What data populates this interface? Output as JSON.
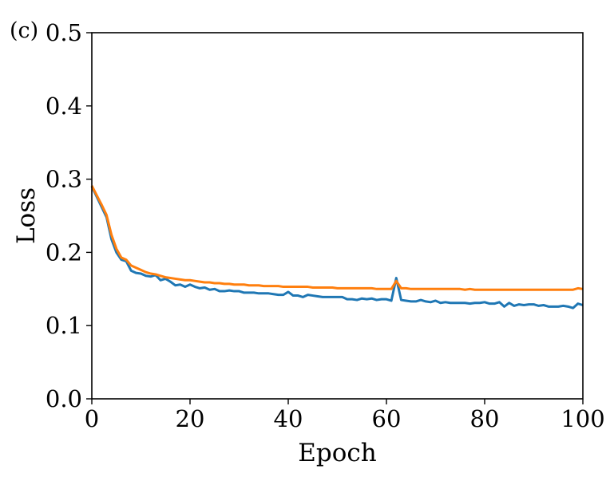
{
  "panel_label": "(c)",
  "chart_data": {
    "type": "line",
    "xlabel": "Epoch",
    "ylabel": "Loss",
    "xlim": [
      0,
      100
    ],
    "ylim": [
      0.0,
      0.5
    ],
    "xticks": [
      0,
      20,
      40,
      60,
      80,
      100
    ],
    "yticks": [
      0.0,
      0.1,
      0.2,
      0.3,
      0.4,
      0.5
    ],
    "xtick_labels": [
      "0",
      "20",
      "40",
      "60",
      "80",
      "100"
    ],
    "ytick_labels": [
      "0.0",
      "0.1",
      "0.2",
      "0.3",
      "0.4",
      "0.5"
    ],
    "grid": false,
    "legend": "none",
    "series": [
      {
        "color": "#1f77b4",
        "x": [
          0,
          1,
          2,
          3,
          4,
          5,
          6,
          7,
          8,
          9,
          10,
          11,
          12,
          13,
          14,
          15,
          16,
          17,
          18,
          19,
          20,
          21,
          22,
          23,
          24,
          25,
          26,
          27,
          28,
          29,
          30,
          31,
          32,
          33,
          34,
          35,
          36,
          37,
          38,
          39,
          40,
          41,
          42,
          43,
          44,
          45,
          46,
          47,
          48,
          49,
          50,
          51,
          52,
          53,
          54,
          55,
          56,
          57,
          58,
          59,
          60,
          61,
          62,
          63,
          64,
          65,
          66,
          67,
          68,
          69,
          70,
          71,
          72,
          73,
          74,
          75,
          76,
          77,
          78,
          79,
          80,
          81,
          82,
          83,
          84,
          85,
          86,
          87,
          88,
          89,
          90,
          91,
          92,
          93,
          94,
          95,
          96,
          97,
          98,
          99,
          100
        ],
        "y": [
          0.29,
          0.276,
          0.262,
          0.248,
          0.218,
          0.2,
          0.19,
          0.188,
          0.175,
          0.172,
          0.171,
          0.168,
          0.167,
          0.169,
          0.162,
          0.164,
          0.16,
          0.155,
          0.156,
          0.153,
          0.156,
          0.153,
          0.151,
          0.152,
          0.149,
          0.15,
          0.147,
          0.147,
          0.148,
          0.147,
          0.147,
          0.145,
          0.145,
          0.145,
          0.144,
          0.144,
          0.144,
          0.143,
          0.142,
          0.142,
          0.146,
          0.141,
          0.141,
          0.139,
          0.142,
          0.141,
          0.14,
          0.139,
          0.139,
          0.139,
          0.139,
          0.139,
          0.136,
          0.136,
          0.135,
          0.137,
          0.136,
          0.137,
          0.135,
          0.136,
          0.136,
          0.134,
          0.165,
          0.135,
          0.134,
          0.133,
          0.133,
          0.135,
          0.133,
          0.132,
          0.134,
          0.131,
          0.132,
          0.131,
          0.131,
          0.131,
          0.131,
          0.13,
          0.131,
          0.131,
          0.132,
          0.13,
          0.13,
          0.132,
          0.126,
          0.131,
          0.127,
          0.129,
          0.128,
          0.129,
          0.129,
          0.127,
          0.128,
          0.126,
          0.126,
          0.126,
          0.127,
          0.126,
          0.124,
          0.13,
          0.128
        ]
      },
      {
        "color": "#ff7f0e",
        "x": [
          0,
          1,
          2,
          3,
          4,
          5,
          6,
          7,
          8,
          9,
          10,
          11,
          12,
          13,
          14,
          15,
          16,
          17,
          18,
          19,
          20,
          21,
          22,
          23,
          24,
          25,
          26,
          27,
          28,
          29,
          30,
          31,
          32,
          33,
          34,
          35,
          36,
          37,
          38,
          39,
          40,
          41,
          42,
          43,
          44,
          45,
          46,
          47,
          48,
          49,
          50,
          51,
          52,
          53,
          54,
          55,
          56,
          57,
          58,
          59,
          60,
          61,
          62,
          63,
          64,
          65,
          66,
          67,
          68,
          69,
          70,
          71,
          72,
          73,
          74,
          75,
          76,
          77,
          78,
          79,
          80,
          81,
          82,
          83,
          84,
          85,
          86,
          87,
          88,
          89,
          90,
          91,
          92,
          93,
          94,
          95,
          96,
          97,
          98,
          99,
          100
        ],
        "y": [
          0.291,
          0.278,
          0.265,
          0.251,
          0.224,
          0.205,
          0.193,
          0.19,
          0.182,
          0.179,
          0.176,
          0.173,
          0.171,
          0.17,
          0.168,
          0.166,
          0.165,
          0.164,
          0.163,
          0.162,
          0.162,
          0.161,
          0.16,
          0.159,
          0.159,
          0.158,
          0.158,
          0.157,
          0.157,
          0.156,
          0.156,
          0.156,
          0.155,
          0.155,
          0.155,
          0.154,
          0.154,
          0.154,
          0.154,
          0.153,
          0.153,
          0.153,
          0.153,
          0.153,
          0.153,
          0.152,
          0.152,
          0.152,
          0.152,
          0.152,
          0.151,
          0.151,
          0.151,
          0.151,
          0.151,
          0.151,
          0.151,
          0.151,
          0.15,
          0.15,
          0.15,
          0.15,
          0.161,
          0.151,
          0.151,
          0.15,
          0.15,
          0.15,
          0.15,
          0.15,
          0.15,
          0.15,
          0.15,
          0.15,
          0.15,
          0.15,
          0.149,
          0.15,
          0.149,
          0.149,
          0.149,
          0.149,
          0.149,
          0.149,
          0.149,
          0.149,
          0.149,
          0.149,
          0.149,
          0.149,
          0.149,
          0.149,
          0.149,
          0.149,
          0.149,
          0.149,
          0.149,
          0.149,
          0.149,
          0.151,
          0.15
        ]
      }
    ]
  }
}
